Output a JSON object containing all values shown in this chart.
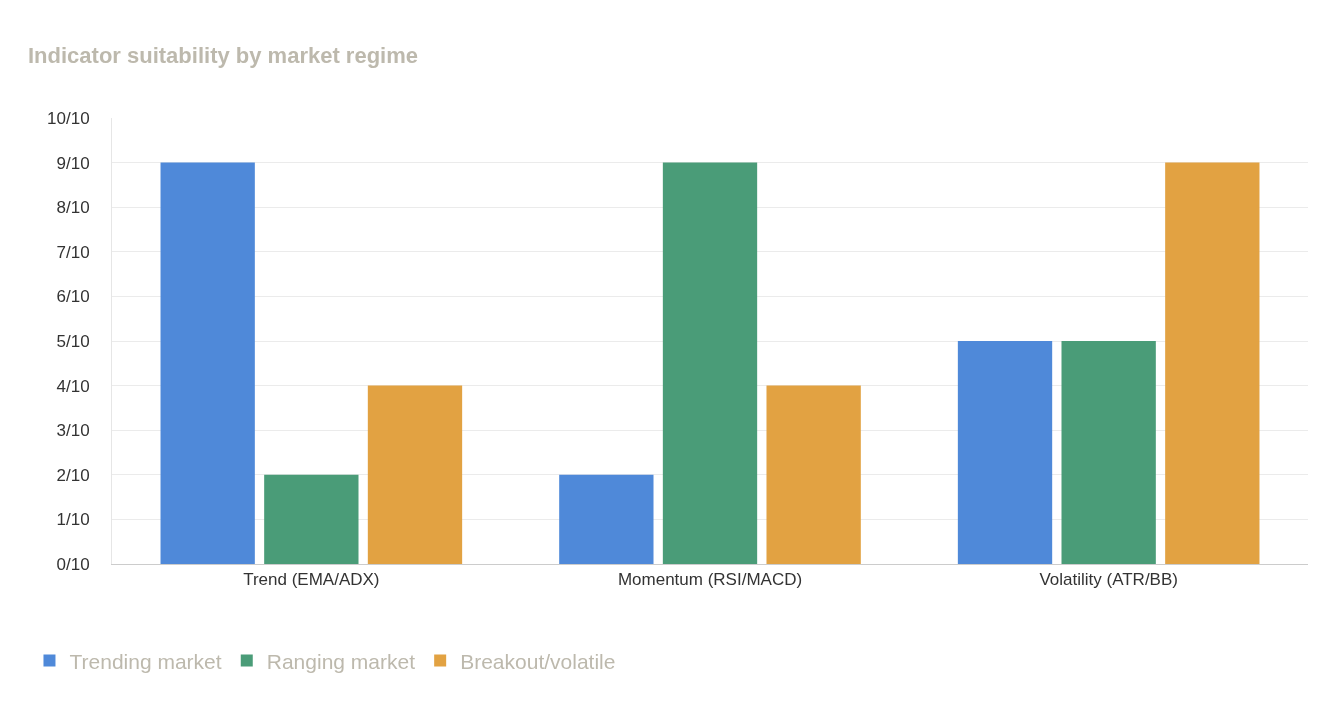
{
  "chart_data": {
    "type": "bar",
    "title": "Indicator suitability by market regime",
    "categories": [
      "Trend (EMA/ADX)",
      "Momentum (RSI/MACD)",
      "Volatility (ATR/BB)"
    ],
    "series": [
      {
        "name": "Trending market",
        "color": "#4f89d9",
        "values": [
          0.9,
          0.2,
          0.5
        ]
      },
      {
        "name": "Ranging market",
        "color": "#4a9c78",
        "values": [
          0.2,
          0.9,
          0.5
        ]
      },
      {
        "name": "Breakout/volatile",
        "color": "#e2a242",
        "values": [
          0.4,
          0.4,
          0.9
        ]
      }
    ],
    "ylim": [
      0,
      1
    ],
    "yticks": [
      {
        "value": 0,
        "label": "0/10"
      },
      {
        "value": 0.1,
        "label": "1/10"
      },
      {
        "value": 0.2,
        "label": "2/10"
      },
      {
        "value": 0.3,
        "label": "3/10"
      },
      {
        "value": 0.4,
        "label": "4/10"
      },
      {
        "value": 0.5,
        "label": "5/10"
      },
      {
        "value": 0.6,
        "label": "6/10"
      },
      {
        "value": 0.7,
        "label": "7/10"
      },
      {
        "value": 0.8,
        "label": "8/10"
      },
      {
        "value": 0.9,
        "label": "9/10"
      },
      {
        "value": 1,
        "label": "10/10"
      }
    ],
    "grid": "y",
    "legend": "bottom left"
  }
}
